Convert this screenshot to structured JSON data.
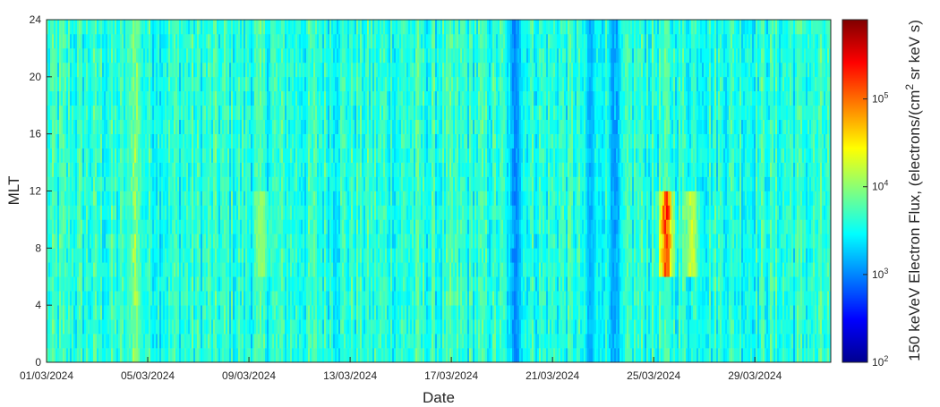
{
  "chart_data": {
    "type": "heatmap",
    "title": "",
    "xlabel": "Date",
    "ylabel": "MLT",
    "x_range": [
      "01/03/2024",
      "01/04/2024"
    ],
    "x_ticks": [
      "01/03/2024",
      "05/03/2024",
      "09/03/2024",
      "13/03/2024",
      "17/03/2024",
      "21/03/2024",
      "25/03/2024",
      "29/03/2024"
    ],
    "y_range": [
      0,
      24
    ],
    "y_ticks": [
      "0",
      "4",
      "8",
      "12",
      "16",
      "20",
      "24"
    ],
    "colorbar": {
      "label_prefix": "150 keVeV Electron Flux, (electrons/(cm",
      "label_sup": "2",
      "label_suffix": " sr keV s)",
      "scale": "log",
      "range": [
        100,
        800000
      ],
      "colormap": "jet",
      "ticks": [
        {
          "base": "10",
          "exp": "2"
        },
        {
          "base": "10",
          "exp": "3"
        },
        {
          "base": "10",
          "exp": "4"
        },
        {
          "base": "10",
          "exp": "5"
        }
      ]
    },
    "background_level": 4000,
    "features": [
      {
        "kind": "low",
        "date": "04/03/2024",
        "mlt": "all",
        "level": 600
      },
      {
        "kind": "high",
        "date": "04/03/2024",
        "mlt": "all",
        "level": 20000
      },
      {
        "kind": "low",
        "date": "19/03/2024",
        "mlt": "all",
        "level": 800
      },
      {
        "kind": "low",
        "date": "22/03/2024",
        "mlt": "all",
        "level": 1200
      },
      {
        "kind": "low",
        "date": "23/03/2024",
        "mlt": "all",
        "level": 900
      },
      {
        "kind": "high",
        "date": "25/03/2024",
        "mlt": "6-12",
        "level": 300000
      },
      {
        "kind": "high",
        "date": "26/03/2024",
        "mlt": "6-12",
        "level": 25000
      },
      {
        "kind": "high",
        "date": "09/03/2024",
        "mlt": "6-12",
        "level": 12000
      }
    ]
  }
}
